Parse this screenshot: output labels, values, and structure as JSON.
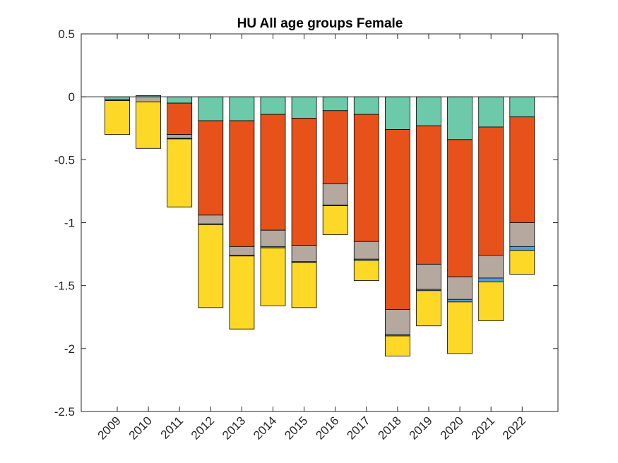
{
  "chart_data": {
    "type": "bar",
    "stacked": true,
    "title": "HU  All age groups  Female",
    "xlabel": "",
    "ylabel": "",
    "ylim": [
      -2.5,
      0.5
    ],
    "yticks": [
      0.5,
      0,
      -0.5,
      -1,
      -1.5,
      -2,
      -2.5
    ],
    "ytick_labels": [
      "0.5",
      "0",
      "-0.5",
      "-1",
      "-1.5",
      "-2",
      "-2.5"
    ],
    "grid": false,
    "categories": [
      "2009",
      "2010",
      "2011",
      "2012",
      "2013",
      "2014",
      "2015",
      "2016",
      "2017",
      "2018",
      "2019",
      "2020",
      "2021",
      "2022"
    ],
    "series": [
      {
        "name": "teal",
        "color": "#6ccaaa",
        "values": [
          -0.02,
          0.01,
          -0.05,
          -0.19,
          -0.19,
          -0.14,
          -0.17,
          -0.11,
          -0.14,
          -0.26,
          -0.23,
          -0.34,
          -0.24,
          -0.16
        ]
      },
      {
        "name": "orange",
        "color": "#e6521a",
        "values": [
          0.0,
          0.0,
          -0.25,
          -0.75,
          -1.0,
          -0.92,
          -1.01,
          -0.58,
          -1.01,
          -1.43,
          -1.1,
          -1.09,
          -1.02,
          -0.84
        ]
      },
      {
        "name": "grey",
        "color": "#b4a89f",
        "values": [
          -0.01,
          -0.04,
          -0.03,
          -0.07,
          -0.07,
          -0.13,
          -0.13,
          -0.17,
          -0.14,
          -0.2,
          -0.2,
          -0.18,
          -0.18,
          -0.19
        ]
      },
      {
        "name": "blue",
        "color": "#4d9ee8",
        "values": [
          0.0,
          0.0,
          -0.005,
          -0.005,
          -0.005,
          -0.01,
          -0.005,
          -0.005,
          -0.01,
          -0.01,
          -0.01,
          -0.02,
          -0.03,
          -0.03
        ]
      },
      {
        "name": "yellow",
        "color": "#fdd826",
        "values": [
          -0.27,
          -0.37,
          -0.54,
          -0.66,
          -0.58,
          -0.46,
          -0.36,
          -0.23,
          -0.16,
          -0.16,
          -0.28,
          -0.41,
          -0.31,
          -0.19
        ]
      }
    ]
  }
}
